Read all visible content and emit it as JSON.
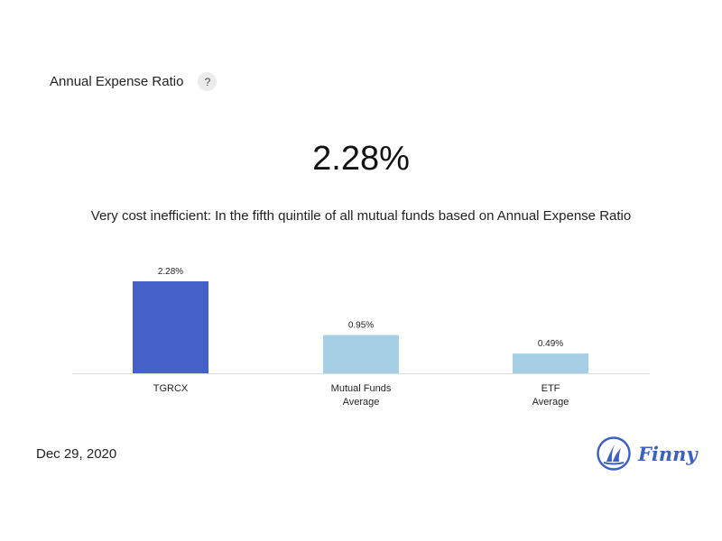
{
  "header": {
    "title": "Annual Expense Ratio",
    "help_label": "?"
  },
  "summary": {
    "value": "2.28%",
    "description": "Very cost inefficient: In the fifth quintile of all mutual funds based on Annual Expense Ratio"
  },
  "chart_data": {
    "type": "bar",
    "categories": [
      [
        "TGRCX"
      ],
      [
        "Mutual Funds",
        "Average"
      ],
      [
        "ETF",
        "Average"
      ]
    ],
    "values": [
      2.28,
      0.95,
      0.49
    ],
    "value_labels": [
      "2.28%",
      "0.95%",
      "0.49%"
    ],
    "colors": [
      "#4361c8",
      "#a6cfe6",
      "#a6cfe6"
    ],
    "ylim": [
      0,
      2.28
    ],
    "grid": false,
    "axis_color": "#dddddd"
  },
  "footer": {
    "date": "Dec 29, 2020",
    "brand": "Finny"
  },
  "colors": {
    "accent": "#3a60c4"
  },
  "icons": {
    "help": "question-mark-icon",
    "logo": "finny-sailboat-logo"
  }
}
